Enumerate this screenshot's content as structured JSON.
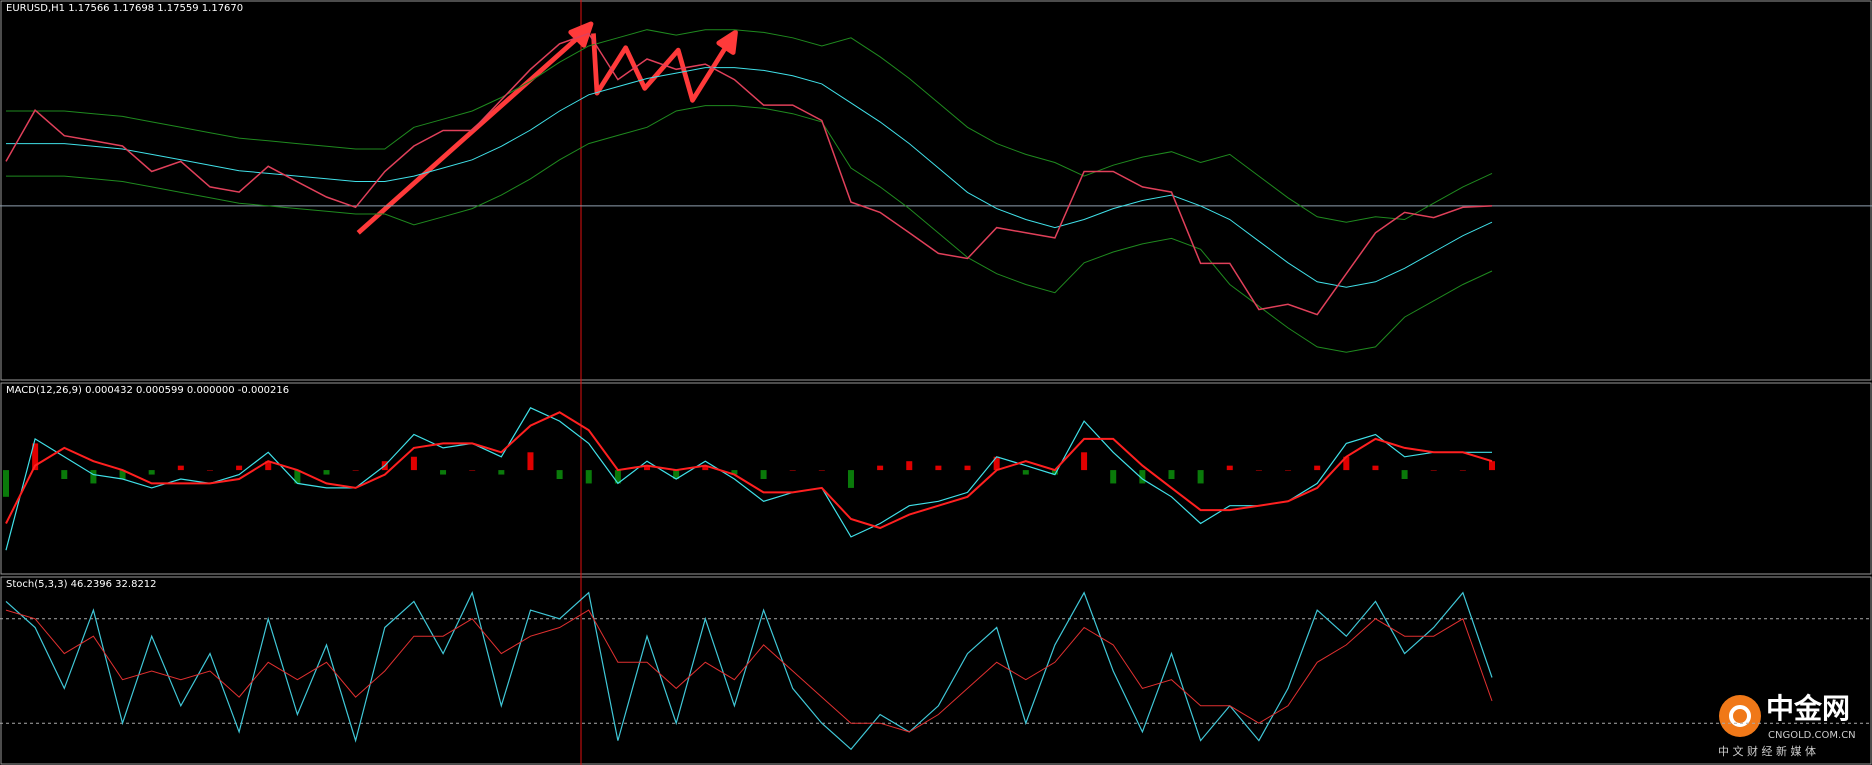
{
  "chart_data": [
    {
      "type": "price",
      "title": "EURUSD,H1  1.17566 1.17698 1.17559 1.17670",
      "ylim": [
        1.1705,
        1.184
      ],
      "series": [
        {
          "color": "#e0405a",
          "values": [
            1.17834,
            1.18023,
            1.17929,
            1.1791,
            1.17891,
            1.17797,
            1.17834,
            1.1774,
            1.17721,
            1.17816,
            1.17759,
            1.17703,
            1.17665,
            1.17797,
            1.17891,
            1.17948,
            1.17948,
            1.18061,
            1.18174,
            1.18268,
            1.18306,
            1.18136,
            1.18212,
            1.18174,
            1.18193,
            1.18136,
            1.18042,
            1.18042,
            1.17985,
            1.17684,
            1.17646,
            1.17571,
            1.17495,
            1.17476,
            1.1759,
            1.17571,
            1.17552,
            1.17797,
            1.17797,
            1.1774,
            1.17721,
            1.17458,
            1.17458,
            1.17288,
            1.17307,
            1.17269,
            1.1742,
            1.17571,
            1.17646,
            1.17627,
            1.17665,
            1.1767
          ]
        },
        {
          "color": "#40e0e8",
          "values": [
            1.179,
            1.179,
            1.179,
            1.1789,
            1.1788,
            1.1786,
            1.1784,
            1.1782,
            1.178,
            1.1779,
            1.1778,
            1.1777,
            1.1776,
            1.1776,
            1.1778,
            1.1781,
            1.1784,
            1.1789,
            1.1795,
            1.1802,
            1.1808,
            1.1811,
            1.1814,
            1.1816,
            1.1818,
            1.1818,
            1.1817,
            1.1815,
            1.1812,
            1.1805,
            1.1798,
            1.179,
            1.1781,
            1.1772,
            1.1766,
            1.1762,
            1.1759,
            1.1762,
            1.1766,
            1.1769,
            1.1771,
            1.1767,
            1.1762,
            1.1754,
            1.1746,
            1.1739,
            1.1737,
            1.1739,
            1.1744,
            1.175,
            1.1756,
            1.1761
          ]
        },
        {
          "color": "#1f8a1f",
          "values": [
            1.1802,
            1.1802,
            1.1802,
            1.1801,
            1.18,
            1.1798,
            1.1796,
            1.1794,
            1.1792,
            1.1791,
            1.179,
            1.1789,
            1.1788,
            1.1788,
            1.1796,
            1.1799,
            1.1802,
            1.1807,
            1.1813,
            1.182,
            1.1826,
            1.1829,
            1.1832,
            1.183,
            1.1832,
            1.1832,
            1.1831,
            1.1829,
            1.1826,
            1.1829,
            1.1822,
            1.1814,
            1.1805,
            1.1796,
            1.179,
            1.1786,
            1.1783,
            1.1778,
            1.1782,
            1.1785,
            1.1787,
            1.1783,
            1.1786,
            1.1778,
            1.177,
            1.1763,
            1.1761,
            1.1763,
            1.1762,
            1.1768,
            1.1774,
            1.1779
          ]
        },
        {
          "color": "#1f8a1f",
          "values": [
            1.1778,
            1.1778,
            1.1778,
            1.1777,
            1.1776,
            1.1774,
            1.1772,
            1.177,
            1.1768,
            1.1767,
            1.1766,
            1.1765,
            1.1764,
            1.1764,
            1.176,
            1.1763,
            1.1766,
            1.1771,
            1.1777,
            1.1784,
            1.179,
            1.1793,
            1.1796,
            1.1802,
            1.1804,
            1.1804,
            1.1803,
            1.1801,
            1.1798,
            1.1781,
            1.1774,
            1.1766,
            1.1757,
            1.1748,
            1.1742,
            1.1738,
            1.1735,
            1.1746,
            1.175,
            1.1753,
            1.1755,
            1.1751,
            1.1738,
            1.173,
            1.1722,
            1.1715,
            1.1713,
            1.1715,
            1.1726,
            1.1732,
            1.1738,
            1.1743
          ]
        }
      ]
    },
    {
      "type": "macd",
      "title": "MACD(12,26,9) 0.000432 0.000599 0.000000 -0.000216",
      "ylim": [
        -0.0022,
        0.0018
      ],
      "up_color": "#e00000",
      "down_color": "#0a7a0a",
      "histogram": [
        -0.0006,
        0.0006,
        -0.0002,
        -0.0003,
        -0.0002,
        -0.0001,
        0.0001,
        0,
        0.0001,
        0.0002,
        -0.0003,
        -0.0001,
        0,
        0.0002,
        0.0003,
        -0.0001,
        0,
        -0.0001,
        0.0004,
        -0.0002,
        -0.0003,
        -0.0003,
        0.0001,
        -0.0002,
        0.0001,
        -0.0001,
        -0.0002,
        0,
        0,
        -0.0004,
        0.0001,
        0.0002,
        0.0001,
        0.0001,
        0.0003,
        -0.0001,
        -0.0001,
        0.0004,
        -0.0003,
        -0.0003,
        -0.0002,
        -0.0003,
        0.0001,
        0,
        0,
        0.0001,
        0.0003,
        0.0001,
        -0.0002,
        0,
        0,
        0.0002
      ],
      "series": [
        {
          "color": "#40e0e8",
          "values": [
            -0.0018,
            0.0007,
            0.0003,
            -0.0001,
            -0.0002,
            -0.0004,
            -0.0002,
            -0.0003,
            -0.0001,
            0.0004,
            -0.0003,
            -0.0004,
            -0.0004,
            0.0001,
            0.0008,
            0.0005,
            0.0006,
            0.0003,
            0.0014,
            0.0011,
            0.0006,
            -0.0003,
            0.0002,
            -0.0002,
            0.0002,
            -0.0002,
            -0.0007,
            -0.0005,
            -0.0004,
            -0.0015,
            -0.0012,
            -0.0008,
            -0.0007,
            -0.0005,
            0.0003,
            0.0001,
            -0.0001,
            0.0011,
            0.0004,
            -0.0002,
            -0.0006,
            -0.0012,
            -0.0008,
            -0.0008,
            -0.0007,
            -0.0003,
            0.0006,
            0.0008,
            0.0003,
            0.0004,
            0.0004,
            0.0004
          ]
        },
        {
          "color": "#ff2020",
          "values": [
            -0.0012,
            0.0001,
            0.0005,
            0.0002,
            0,
            -0.0003,
            -0.0003,
            -0.0003,
            -0.0002,
            0.0002,
            0,
            -0.0003,
            -0.0004,
            -0.0001,
            0.0005,
            0.0006,
            0.0006,
            0.0004,
            0.001,
            0.0013,
            0.0009,
            0,
            0.0001,
            0,
            0.0001,
            -0.0001,
            -0.0005,
            -0.0005,
            -0.0004,
            -0.0011,
            -0.0013,
            -0.001,
            -0.0008,
            -0.0006,
            0,
            0.0002,
            0,
            0.0007,
            0.0007,
            0.0001,
            -0.0004,
            -0.0009,
            -0.0009,
            -0.0008,
            -0.0007,
            -0.0004,
            0.0003,
            0.0007,
            0.0005,
            0.0004,
            0.0004,
            0.0002
          ]
        }
      ]
    },
    {
      "type": "stochastic",
      "title": "Stoch(5,3,3) 46.2396 32.8212",
      "ylim": [
        0,
        100
      ],
      "levels": [
        20,
        80
      ],
      "series": [
        {
          "color": "#40c8d8",
          "values": [
            90,
            75,
            40,
            85,
            20,
            70,
            30,
            60,
            15,
            80,
            25,
            65,
            10,
            75,
            90,
            60,
            95,
            30,
            85,
            80,
            95,
            10,
            70,
            20,
            80,
            30,
            85,
            40,
            20,
            5,
            25,
            15,
            30,
            60,
            75,
            20,
            65,
            95,
            50,
            15,
            60,
            10,
            30,
            10,
            40,
            85,
            70,
            90,
            60,
            75,
            95,
            46.2396
          ]
        },
        {
          "color": "#e03030",
          "values": [
            85,
            80,
            60,
            70,
            45,
            50,
            45,
            50,
            35,
            55,
            45,
            55,
            35,
            50,
            70,
            70,
            80,
            60,
            70,
            75,
            85,
            55,
            55,
            40,
            55,
            45,
            65,
            50,
            35,
            20,
            20,
            15,
            25,
            40,
            55,
            45,
            55,
            75,
            65,
            40,
            45,
            30,
            30,
            20,
            30,
            55,
            65,
            80,
            70,
            70,
            80,
            32.8212
          ]
        }
      ]
    }
  ],
  "logo": {
    "name": "中金网",
    "domain": "CNGOLD.COM.CN",
    "slogan": "中 文 财 经 新 媒 体"
  }
}
